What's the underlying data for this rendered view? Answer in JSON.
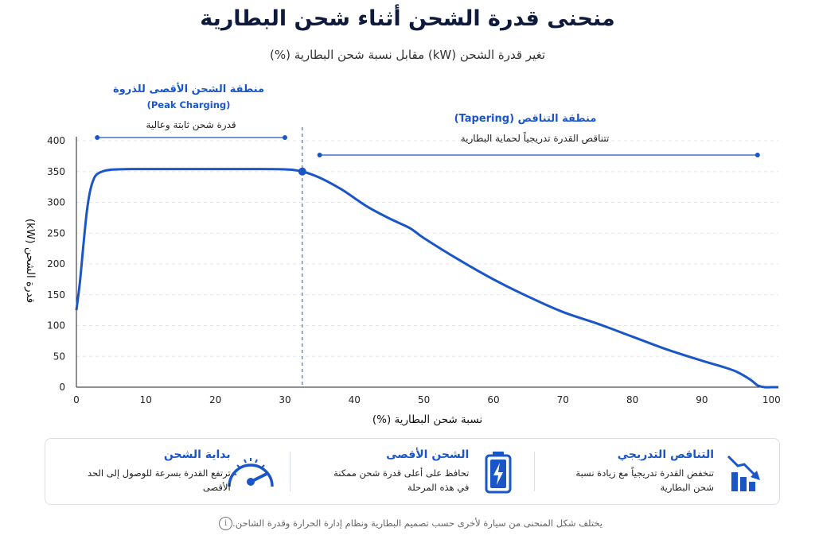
{
  "header": {
    "title": "منحنى قدرة الشحن أثناء شحن البطارية",
    "subtitle": "تغير قدرة الشحن (kW) مقابل نسبة شحن البطارية (%)"
  },
  "annotations": {
    "peak_title": "منطقة الشحن الأقصى للذروة",
    "peak_en": "(Peak Charging)",
    "peak_desc": "قدرة شحن ثابتة وعالية",
    "taper_title": "منطقة التناقص (Tapering)",
    "taper_desc": "تتناقص القدرة تدريجياً لحماية البطارية"
  },
  "chart_data": {
    "type": "line",
    "xlabel": "نسبة شحن البطارية (%)",
    "ylabel": "قدرة الشحن (kW)",
    "xlim": [
      0,
      101
    ],
    "ylim": [
      0,
      400
    ],
    "xticks": [
      0,
      10,
      20,
      30,
      40,
      50,
      60,
      70,
      80,
      90,
      100
    ],
    "yticks": [
      0,
      50,
      100,
      150,
      200,
      250,
      300,
      350,
      400
    ],
    "grid": true,
    "peak_marker": {
      "x": 32.5,
      "y": 350
    },
    "peak_region": [
      3,
      30
    ],
    "taper_region": [
      35,
      98
    ],
    "line_color": "#1a56c8",
    "x": [
      0,
      0.5,
      1,
      1.5,
      2,
      2.5,
      3,
      4,
      5,
      6,
      8,
      10,
      15,
      20,
      25,
      30,
      32.5,
      35,
      38,
      40,
      42,
      45,
      48,
      50,
      55,
      60,
      65,
      70,
      75,
      80,
      85,
      90,
      93,
      95,
      97,
      98,
      99,
      100,
      101
    ],
    "y": [
      125,
      170,
      230,
      285,
      320,
      338,
      346,
      351,
      353,
      353.5,
      354,
      354,
      354,
      354,
      354,
      353.5,
      350,
      340,
      322,
      307,
      292,
      274,
      258,
      242,
      207,
      175,
      147,
      122,
      103,
      82,
      61,
      43,
      33,
      25,
      12,
      3,
      0,
      0,
      0
    ]
  },
  "cards": [
    {
      "title": "التناقص التدريجي",
      "desc": "تنخفض القدرة تدريجياً مع زيادة نسبة شحن البطارية",
      "icon": "declining-bars-icon"
    },
    {
      "title": "الشحن الأقصى",
      "desc": "تحافظ على أعلى قدرة شحن ممكنة في هذه المرحلة",
      "icon": "battery-charging-icon"
    },
    {
      "title": "بداية الشحن",
      "desc": "ترتفع القدرة بسرعة للوصول إلى الحد الأقصى",
      "icon": "speedometer-icon"
    }
  ],
  "footer": {
    "note": "يختلف شكل المنحنى من سيارة لأخرى حسب تصميم البطارية ونظام إدارة الحرارة وقدرة الشاحن."
  },
  "colors": {
    "accent": "#1a56c8",
    "dark": "#0f1b3d"
  }
}
